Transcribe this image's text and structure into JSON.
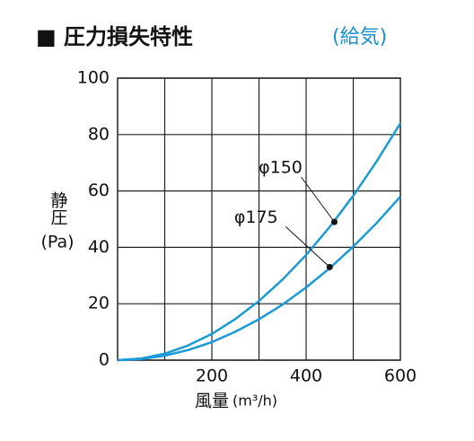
{
  "chart_data": {
    "type": "line",
    "title": "■ 圧力損失特性",
    "subtitle": "(給気)",
    "ylabel": "静圧",
    "yunit": "(Pa)",
    "xlabel": "風量",
    "xunit": "(m³/h)",
    "x": [
      0,
      50,
      100,
      150,
      200,
      250,
      300,
      350,
      400,
      450,
      500,
      550,
      600
    ],
    "series": [
      {
        "name": "φ150",
        "color": "#1a9ad6",
        "values": [
          0,
          0.58,
          2.3,
          5.25,
          9.3,
          14.6,
          21,
          28.6,
          37.3,
          47.25,
          58.3,
          70.6,
          84
        ]
      },
      {
        "name": "φ175",
        "color": "#1a9ad6",
        "values": [
          0,
          0.4,
          1.6,
          3.6,
          6.4,
          10.1,
          14.5,
          19.7,
          25.8,
          32.6,
          40.3,
          48.7,
          58
        ]
      }
    ],
    "annotations": [
      {
        "text": "φ150",
        "x": 460,
        "y": 49
      },
      {
        "text": "φ175",
        "x": 450,
        "y": 33
      }
    ],
    "xlim": [
      0,
      600
    ],
    "ylim": [
      0,
      100
    ],
    "xticks": [
      200,
      400,
      600
    ],
    "xgrid": [
      100,
      200,
      300,
      400,
      500
    ],
    "yticks": [
      0,
      20,
      40,
      60,
      80,
      100
    ],
    "grid": true
  }
}
